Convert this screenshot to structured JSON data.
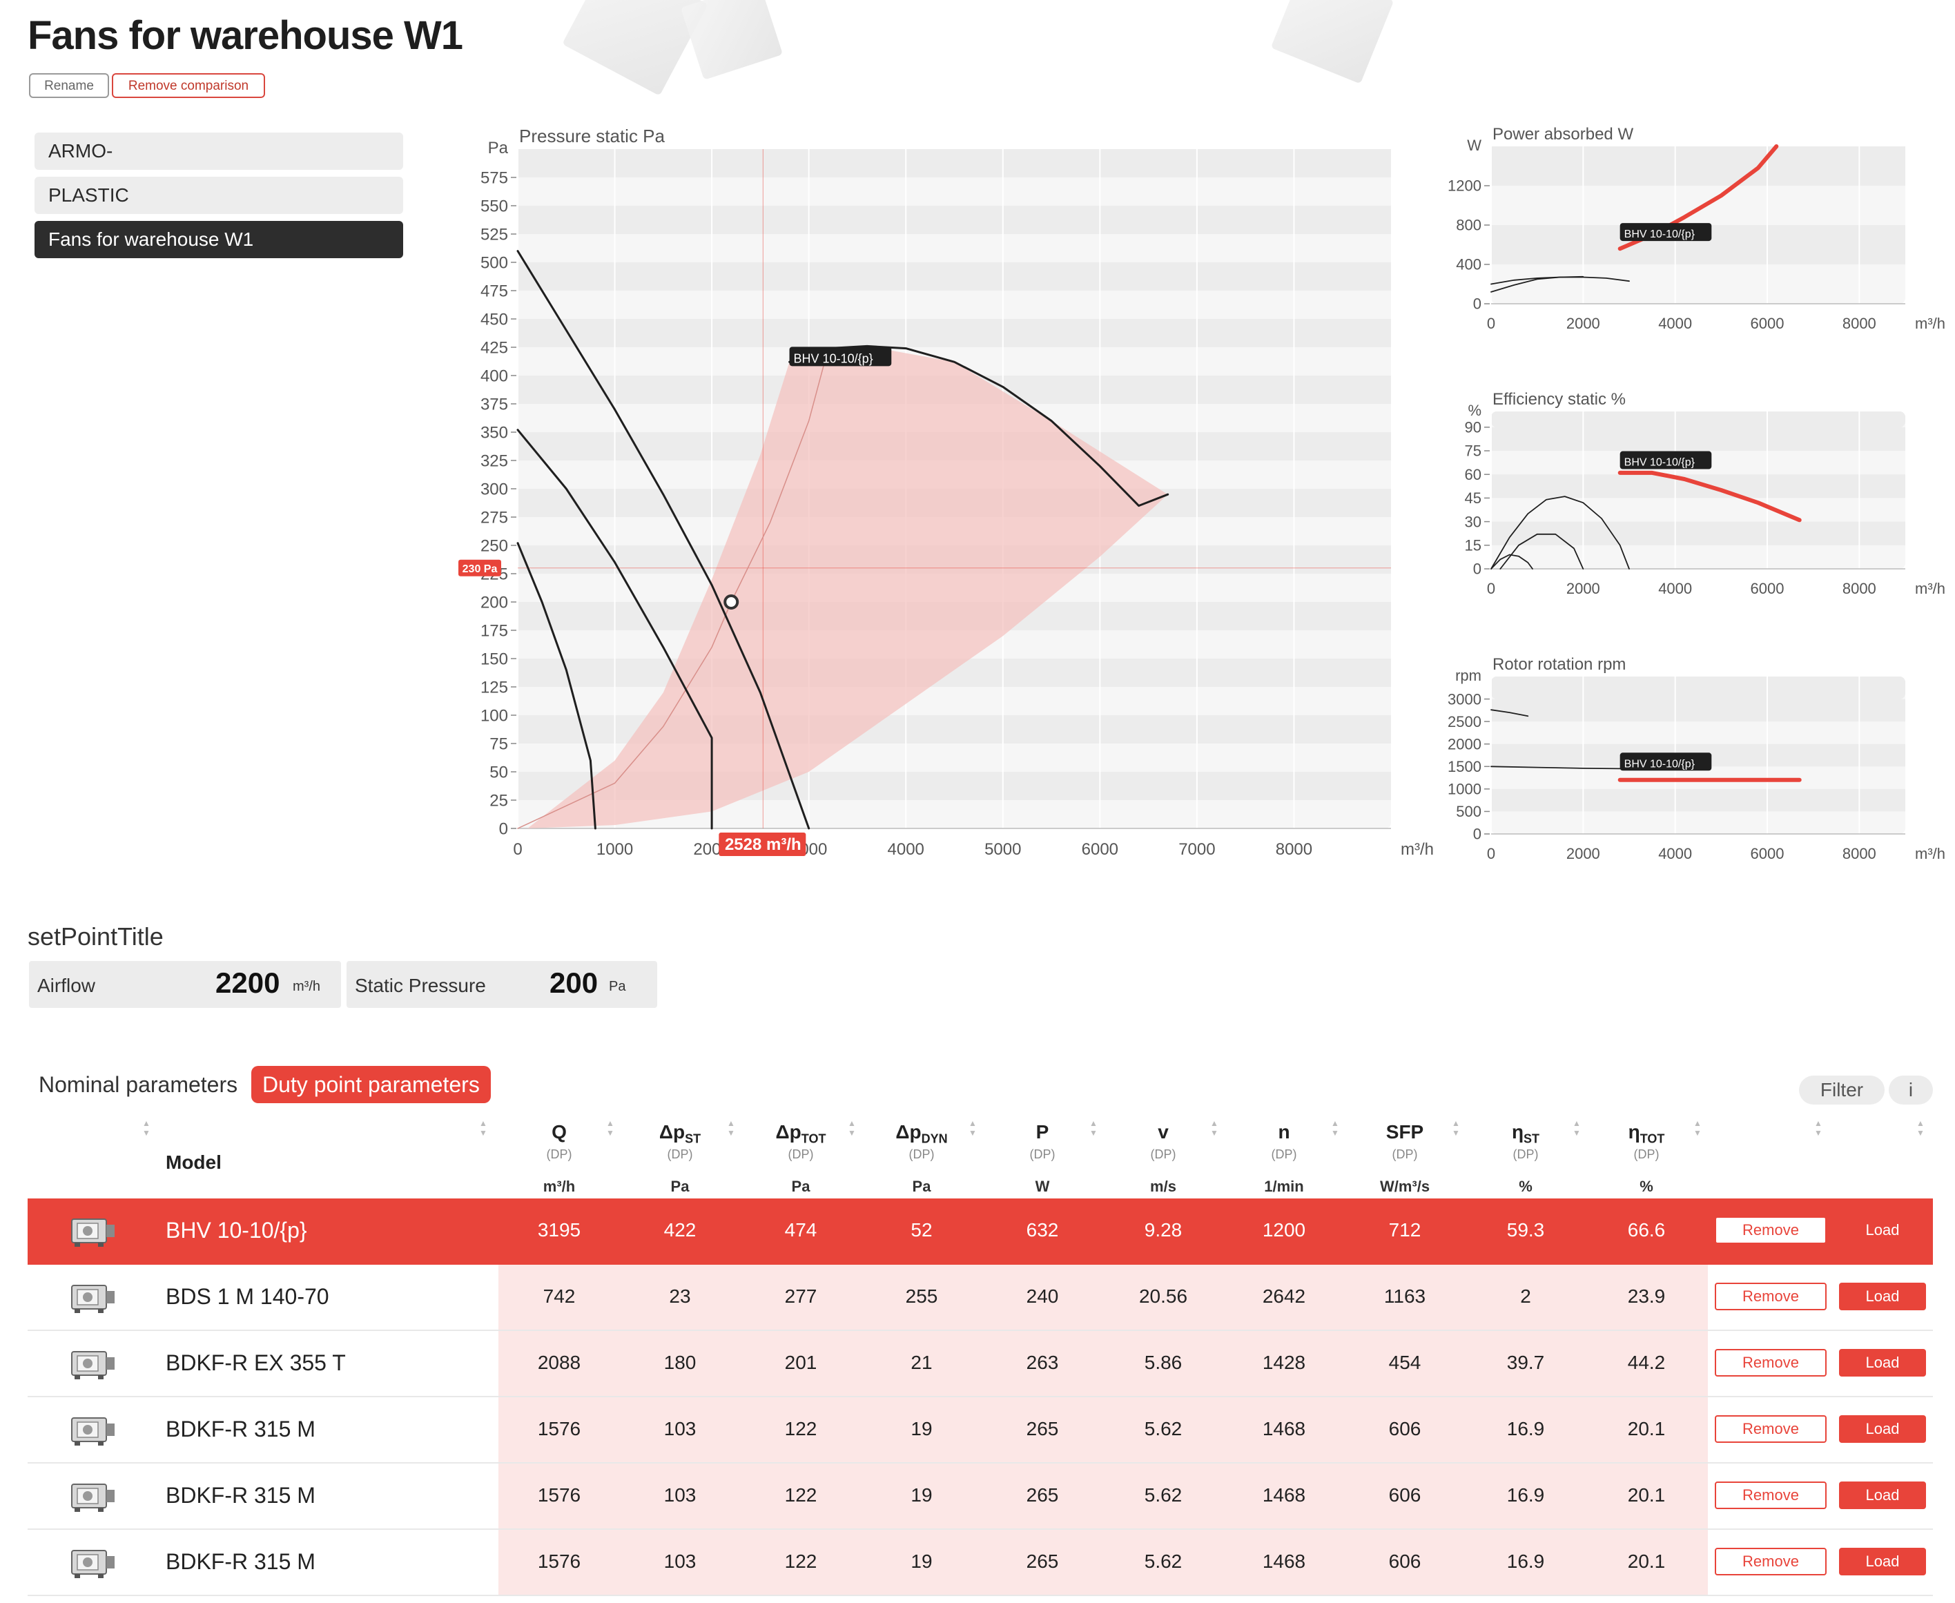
{
  "page": {
    "title": "Fans for warehouse W1",
    "rename_label": "Rename",
    "remove_comparison_label": "Remove comparison"
  },
  "sidebar": {
    "items": [
      {
        "label": "ARMO-",
        "active": false
      },
      {
        "label": "PLASTIC",
        "active": false
      },
      {
        "label": "Fans for warehouse W1",
        "active": true
      }
    ]
  },
  "colors": {
    "accent": "#e8443a",
    "dark": "#2d2d2d",
    "band": "#ececec",
    "light_band": "#f6f6f6",
    "area": "#f4c3c0"
  },
  "chart_data": [
    {
      "id": "pressure",
      "type": "line",
      "title": "Pressure static Pa",
      "y_unit": "Pa",
      "x_unit": "m³/h",
      "xlim": [
        0,
        9000
      ],
      "ylim": [
        0,
        600
      ],
      "x_ticks": [
        0,
        1000,
        2000,
        3000,
        4000,
        5000,
        6000,
        7000,
        8000
      ],
      "y_ticks": [
        0,
        25,
        50,
        75,
        100,
        125,
        150,
        175,
        200,
        225,
        250,
        275,
        300,
        325,
        350,
        375,
        400,
        425,
        450,
        475,
        500,
        525,
        550,
        575
      ],
      "series": [
        {
          "points": [
            [
              0,
              510
            ],
            [
              500,
              440
            ],
            [
              1000,
              370
            ],
            [
              1500,
              295
            ],
            [
              2000,
              215
            ],
            [
              2500,
              120
            ],
            [
              3000,
              0
            ]
          ]
        },
        {
          "points": [
            [
              0,
              352
            ],
            [
              500,
              300
            ],
            [
              1000,
              235
            ],
            [
              1500,
              160
            ],
            [
              2000,
              80
            ],
            [
              2000,
              0
            ]
          ]
        },
        {
          "points": [
            [
              0,
              252
            ],
            [
              250,
              200
            ],
            [
              500,
              140
            ],
            [
              750,
              60
            ],
            [
              800,
              0
            ]
          ]
        },
        {
          "name": "BHV 10-10/{p}",
          "points": [
            [
              2800,
              412
            ],
            [
              3200,
              424
            ],
            [
              3600,
              426
            ],
            [
              4000,
              424
            ],
            [
              4500,
              412
            ],
            [
              5000,
              390
            ],
            [
              5500,
              360
            ],
            [
              6000,
              320
            ],
            [
              6400,
              285
            ],
            [
              6700,
              295
            ]
          ]
        }
      ],
      "envelope": {
        "upper": [
          [
            100,
            0
          ],
          [
            1000,
            60
          ],
          [
            1500,
            120
          ],
          [
            2000,
            220
          ],
          [
            2500,
            330
          ],
          [
            2800,
            412
          ],
          [
            3600,
            426
          ],
          [
            4500,
            412
          ],
          [
            5500,
            360
          ],
          [
            6700,
            295
          ]
        ],
        "lower": [
          [
            6700,
            295
          ],
          [
            6000,
            240
          ],
          [
            5000,
            170
          ],
          [
            4000,
            110
          ],
          [
            3000,
            50
          ],
          [
            2000,
            15
          ],
          [
            1000,
            3
          ],
          [
            100,
            0
          ]
        ]
      },
      "system_curve": [
        [
          0,
          0
        ],
        [
          1000,
          40
        ],
        [
          1500,
          90
        ],
        [
          2000,
          160
        ],
        [
          2200,
          200
        ],
        [
          2600,
          270
        ],
        [
          3000,
          360
        ],
        [
          3200,
          424
        ]
      ],
      "duty_point": {
        "x": 2200,
        "y": 200
      },
      "crosshair": {
        "x": 2528,
        "y": 230,
        "x_label": "2528 m³/h",
        "y_label": "230 Pa"
      },
      "series_label": "BHV 10-10/{p}"
    },
    {
      "id": "power",
      "type": "line",
      "title": "Power absorbed W",
      "y_unit": "W",
      "x_unit": "m³/h",
      "xlim": [
        0,
        9000
      ],
      "ylim": [
        0,
        1600
      ],
      "x_ticks": [
        0,
        2000,
        4000,
        6000,
        8000
      ],
      "y_ticks": [
        0,
        400,
        800,
        1200
      ],
      "series": [
        {
          "points": [
            [
              0,
              200
            ],
            [
              500,
              240
            ],
            [
              1000,
              260
            ],
            [
              1500,
              270
            ],
            [
              2000,
              270
            ],
            [
              2500,
              260
            ],
            [
              3000,
              230
            ]
          ]
        },
        {
          "points": [
            [
              0,
              120
            ],
            [
              500,
              190
            ],
            [
              1000,
              250
            ],
            [
              1500,
              270
            ],
            [
              2000,
              275
            ]
          ]
        },
        {
          "name": "BHV 10-10/{p}",
          "points": [
            [
              2800,
              560
            ],
            [
              3500,
              700
            ],
            [
              4200,
              880
            ],
            [
              5000,
              1100
            ],
            [
              5800,
              1380
            ],
            [
              6200,
              1600
            ]
          ]
        }
      ],
      "series_label": "BHV 10-10/{p}"
    },
    {
      "id": "efficiency",
      "type": "line",
      "title": "Efficiency static %",
      "y_unit": "%",
      "x_unit": "m³/h",
      "xlim": [
        0,
        9000
      ],
      "ylim": [
        0,
        100
      ],
      "x_ticks": [
        0,
        2000,
        4000,
        6000,
        8000
      ],
      "y_ticks": [
        0,
        15,
        30,
        45,
        60,
        75,
        90
      ],
      "series": [
        {
          "points": [
            [
              0,
              0
            ],
            [
              400,
              20
            ],
            [
              800,
              35
            ],
            [
              1200,
              44
            ],
            [
              1600,
              46
            ],
            [
              2000,
              42
            ],
            [
              2400,
              32
            ],
            [
              2800,
              15
            ],
            [
              3000,
              0
            ]
          ]
        },
        {
          "points": [
            [
              200,
              0
            ],
            [
              600,
              15
            ],
            [
              1000,
              22
            ],
            [
              1400,
              22
            ],
            [
              1800,
              13
            ],
            [
              2000,
              0
            ]
          ]
        },
        {
          "points": [
            [
              0,
              0
            ],
            [
              200,
              6
            ],
            [
              400,
              9
            ],
            [
              600,
              8
            ],
            [
              800,
              4
            ],
            [
              900,
              0
            ]
          ]
        },
        {
          "name": "BHV 10-10/{p}",
          "points": [
            [
              2800,
              61
            ],
            [
              3500,
              61
            ],
            [
              4200,
              57
            ],
            [
              5000,
              50
            ],
            [
              5800,
              42
            ],
            [
              6700,
              31
            ]
          ]
        }
      ],
      "series_label": "BHV 10-10/{p}"
    },
    {
      "id": "rotation",
      "type": "line",
      "title": "Rotor rotation rpm",
      "y_unit": "rpm",
      "x_unit": "m³/h",
      "xlim": [
        0,
        9000
      ],
      "ylim": [
        0,
        3500
      ],
      "x_ticks": [
        0,
        2000,
        4000,
        6000,
        8000
      ],
      "y_ticks": [
        0,
        500,
        1000,
        1500,
        2000,
        2500,
        3000
      ],
      "series": [
        {
          "points": [
            [
              0,
              2760
            ],
            [
              400,
              2700
            ],
            [
              800,
              2620
            ]
          ]
        },
        {
          "points": [
            [
              0,
              1500
            ],
            [
              1000,
              1480
            ],
            [
              2000,
              1460
            ],
            [
              3000,
              1450
            ]
          ]
        },
        {
          "name": "BHV 10-10/{p}",
          "points": [
            [
              2800,
              1200
            ],
            [
              6700,
              1200
            ]
          ]
        }
      ],
      "series_label": "BHV 10-10/{p}"
    }
  ],
  "setpoint": {
    "title": "setPointTitle",
    "airflow_label": "Airflow",
    "airflow_value": "2200",
    "airflow_unit": "m³/h",
    "pressure_label": "Static Pressure",
    "pressure_value": "200",
    "pressure_unit": "Pa"
  },
  "tabs": {
    "nominal": "Nominal parameters",
    "duty": "Duty point parameters"
  },
  "toolbar": {
    "filter": "Filter",
    "info": "i"
  },
  "table": {
    "model_header": "Model",
    "dp_label": "(DP)",
    "columns": [
      {
        "sym": "Q",
        "sub": "",
        "unit": "m³/h"
      },
      {
        "sym": "Δp",
        "sub": "ST",
        "unit": "Pa"
      },
      {
        "sym": "Δp",
        "sub": "TOT",
        "unit": "Pa"
      },
      {
        "sym": "Δp",
        "sub": "DYN",
        "unit": "Pa"
      },
      {
        "sym": "P",
        "sub": "",
        "unit": "W"
      },
      {
        "sym": "v",
        "sub": "",
        "unit": "m/s"
      },
      {
        "sym": "n",
        "sub": "",
        "unit": "1/min"
      },
      {
        "sym": "SFP",
        "sub": "",
        "unit": "W/m³/s"
      },
      {
        "sym": "η",
        "sub": "ST",
        "unit": "%"
      },
      {
        "sym": "η",
        "sub": "TOT",
        "unit": "%"
      }
    ],
    "remove_label": "Remove",
    "load_label": "Load",
    "rows": [
      {
        "model": "BHV 10-10/{p}",
        "selected": true,
        "values": [
          "3195",
          "422",
          "474",
          "52",
          "632",
          "9.28",
          "1200",
          "712",
          "59.3",
          "66.6"
        ]
      },
      {
        "model": "BDS 1 M 140-70",
        "selected": false,
        "values": [
          "742",
          "23",
          "277",
          "255",
          "240",
          "20.56",
          "2642",
          "1163",
          "2",
          "23.9"
        ]
      },
      {
        "model": "BDKF-R EX 355 T",
        "selected": false,
        "values": [
          "2088",
          "180",
          "201",
          "21",
          "263",
          "5.86",
          "1428",
          "454",
          "39.7",
          "44.2"
        ]
      },
      {
        "model": "BDKF-R 315 M",
        "selected": false,
        "values": [
          "1576",
          "103",
          "122",
          "19",
          "265",
          "5.62",
          "1468",
          "606",
          "16.9",
          "20.1"
        ]
      },
      {
        "model": "BDKF-R 315 M",
        "selected": false,
        "values": [
          "1576",
          "103",
          "122",
          "19",
          "265",
          "5.62",
          "1468",
          "606",
          "16.9",
          "20.1"
        ]
      },
      {
        "model": "BDKF-R 315 M",
        "selected": false,
        "values": [
          "1576",
          "103",
          "122",
          "19",
          "265",
          "5.62",
          "1468",
          "606",
          "16.9",
          "20.1"
        ]
      }
    ]
  }
}
